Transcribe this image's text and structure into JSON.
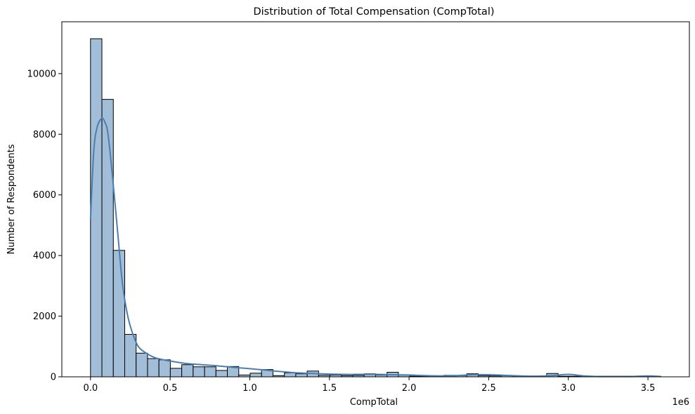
{
  "chart_data": {
    "type": "histogram",
    "title": "Distribution of Total Compensation (CompTotal)",
    "xlabel": "CompTotal",
    "ylabel": "Number of Respondents",
    "x_offset_text": "1e6",
    "xlim": [
      -0.18,
      3.76
    ],
    "ylim": [
      0,
      11710
    ],
    "bin_width": 0.0716,
    "bins_start": 0.0,
    "x_ticks": [
      0.0,
      0.5,
      1.0,
      1.5,
      2.0,
      2.5,
      3.0,
      3.5
    ],
    "x_tick_labels": [
      "0.0",
      "0.5",
      "1.0",
      "1.5",
      "2.0",
      "2.5",
      "3.0",
      "3.5"
    ],
    "y_ticks": [
      0,
      2000,
      4000,
      6000,
      8000,
      10000
    ],
    "y_tick_labels": [
      "0",
      "2000",
      "4000",
      "6000",
      "8000",
      "10000"
    ],
    "counts": [
      11150,
      9150,
      4170,
      1400,
      780,
      600,
      560,
      280,
      400,
      330,
      330,
      210,
      340,
      60,
      120,
      240,
      40,
      130,
      100,
      190,
      50,
      60,
      40,
      50,
      100,
      60,
      150,
      60,
      20,
      20,
      20,
      50,
      40,
      100,
      40,
      30,
      40,
      20,
      20,
      20,
      110,
      20,
      20,
      20,
      20,
      20,
      20,
      20,
      20,
      20
    ],
    "bar_color": "#a2bdd8",
    "edge_color": "#000000",
    "kde": {
      "color": "#4a7fb0",
      "x": [
        0.0,
        0.02,
        0.04,
        0.07,
        0.09,
        0.11,
        0.14,
        0.17,
        0.2,
        0.23,
        0.26,
        0.3,
        0.35,
        0.4,
        0.45,
        0.5,
        0.6,
        0.7,
        0.8,
        0.9,
        1.0,
        1.1,
        1.2,
        1.3,
        1.4,
        1.5,
        1.6,
        1.7,
        1.8,
        1.9,
        2.0,
        2.1,
        2.2,
        2.3,
        2.4,
        2.5,
        2.6,
        2.7,
        2.8,
        2.9,
        3.0,
        3.1,
        3.2,
        3.3,
        3.4,
        3.5,
        3.58
      ],
      "y": [
        5200,
        7400,
        8200,
        8520,
        8400,
        8000,
        6500,
        4800,
        3100,
        2100,
        1500,
        1000,
        780,
        640,
        570,
        520,
        440,
        400,
        360,
        310,
        270,
        220,
        170,
        130,
        110,
        90,
        80,
        80,
        80,
        70,
        60,
        40,
        30,
        40,
        70,
        70,
        50,
        30,
        20,
        40,
        80,
        30,
        10,
        10,
        10,
        30,
        10
      ]
    }
  }
}
